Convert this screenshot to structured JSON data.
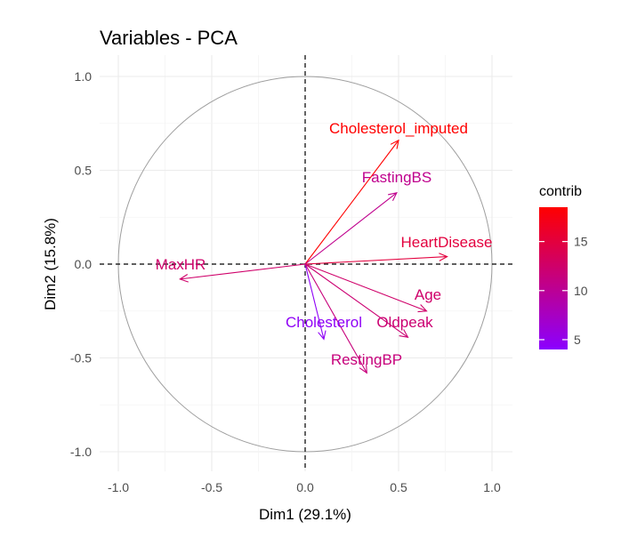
{
  "chart_data": {
    "type": "scatter",
    "title": "Variables - PCA",
    "xlabel": "Dim1 (29.1%)",
    "ylabel": "Dim2 (15.8%)",
    "xlim": [
      -1.02,
      1.02
    ],
    "ylim": [
      -1.02,
      1.02
    ],
    "x_ticks": [
      "-1.0",
      "-0.5",
      "0.0",
      "0.5",
      "1.0"
    ],
    "y_ticks": [
      "1.0",
      "0.5",
      "0.0",
      "-0.5",
      "-1.0"
    ],
    "x_tick_values": [
      -1.0,
      -0.5,
      0.0,
      0.5,
      1.0
    ],
    "y_tick_values": [
      1.0,
      0.5,
      0.0,
      -0.5,
      -1.0
    ],
    "grid": true,
    "unit_circle": true,
    "legend": {
      "title": "contrib",
      "position": "right",
      "ticks": [
        "15",
        "10",
        "5"
      ],
      "tick_values": [
        15,
        10,
        5
      ],
      "range": [
        4,
        18.5
      ],
      "color_low": "#8b00ff",
      "color_high": "#ff0000"
    },
    "variables": [
      {
        "name": "Cholesterol_imputed",
        "x": 0.5,
        "y": 0.66,
        "contrib": 18.5
      },
      {
        "name": "FastingBS",
        "x": 0.49,
        "y": 0.38,
        "contrib": 10.5
      },
      {
        "name": "HeartDisease",
        "x": 0.76,
        "y": 0.04,
        "contrib": 15.0
      },
      {
        "name": "MaxHR",
        "x": -0.67,
        "y": -0.08,
        "contrib": 12.5
      },
      {
        "name": "Age",
        "x": 0.65,
        "y": -0.25,
        "contrib": 12.5
      },
      {
        "name": "Oldpeak",
        "x": 0.55,
        "y": -0.39,
        "contrib": 12.0
      },
      {
        "name": "Cholesterol",
        "x": 0.1,
        "y": -0.4,
        "contrib": 4.5
      },
      {
        "name": "RestingBP",
        "x": 0.33,
        "y": -0.58,
        "contrib": 11.5
      }
    ]
  }
}
